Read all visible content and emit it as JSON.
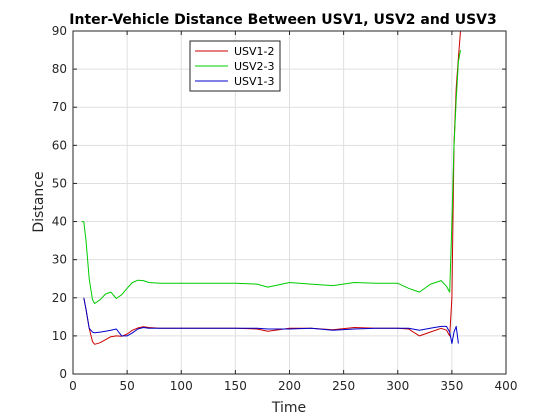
{
  "chart_data": {
    "type": "line",
    "title": "Inter-Vehicle Distance Between USV1, USV2 and USV3",
    "xlabel": "Time",
    "ylabel": "Distance",
    "xlim": [
      0,
      400
    ],
    "ylim": [
      0,
      90
    ],
    "xticks": [
      0,
      50,
      100,
      150,
      200,
      250,
      300,
      350,
      400
    ],
    "yticks": [
      0,
      10,
      20,
      30,
      40,
      50,
      60,
      70,
      80,
      90
    ],
    "grid": true,
    "legend_position": "top-left-center",
    "series": [
      {
        "name": "USV1-2",
        "color": "#cc0000",
        "x": [
          10,
          12,
          15,
          18,
          20,
          25,
          30,
          35,
          40,
          45,
          50,
          55,
          60,
          65,
          70,
          80,
          100,
          150,
          170,
          180,
          200,
          220,
          240,
          260,
          280,
          300,
          310,
          320,
          330,
          340,
          345,
          348,
          350,
          352,
          354,
          356,
          358
        ],
        "y": [
          20,
          17,
          12,
          8.5,
          7.8,
          8.2,
          9,
          9.8,
          10,
          9.9,
          10.5,
          11.5,
          12.1,
          12.4,
          12.2,
          12,
          12,
          12,
          11.8,
          11.2,
          12,
          12,
          11.6,
          12.2,
          12,
          12,
          11.8,
          10,
          11,
          12,
          11.5,
          10,
          20,
          60,
          75,
          83,
          90
        ]
      },
      {
        "name": "USV2-3",
        "color": "#00cc00",
        "x": [
          8,
          10,
          12,
          15,
          18,
          20,
          25,
          30,
          35,
          40,
          45,
          50,
          55,
          60,
          65,
          70,
          80,
          100,
          150,
          170,
          180,
          200,
          220,
          240,
          260,
          280,
          300,
          310,
          320,
          330,
          340,
          345,
          348,
          350,
          352,
          354,
          356,
          358
        ],
        "y": [
          40,
          40,
          35,
          25,
          19.5,
          18.5,
          19.5,
          21,
          21.5,
          19.8,
          20.8,
          22.5,
          24,
          24.6,
          24.5,
          24,
          23.8,
          23.8,
          23.8,
          23.6,
          22.8,
          24,
          23.6,
          23.2,
          24,
          23.8,
          23.8,
          22.5,
          21.5,
          23.5,
          24.5,
          23,
          21.5,
          40,
          60,
          72,
          82,
          85
        ]
      },
      {
        "name": "USV1-3",
        "color": "#0000cc",
        "x": [
          10,
          12,
          15,
          18,
          20,
          25,
          30,
          35,
          40,
          45,
          50,
          55,
          60,
          65,
          70,
          80,
          100,
          150,
          170,
          180,
          200,
          220,
          240,
          260,
          280,
          300,
          310,
          320,
          330,
          340,
          345,
          348,
          350,
          352,
          354,
          356
        ],
        "y": [
          20,
          17,
          12,
          11,
          10.8,
          11,
          11.2,
          11.5,
          11.8,
          10,
          10,
          10.8,
          11.8,
          12.2,
          12,
          12,
          12,
          12,
          12,
          11.8,
          11.8,
          12,
          11.5,
          11.8,
          12,
          12,
          12,
          11.5,
          12,
          12.5,
          12.5,
          11,
          8,
          11,
          12.5,
          8
        ]
      }
    ]
  }
}
